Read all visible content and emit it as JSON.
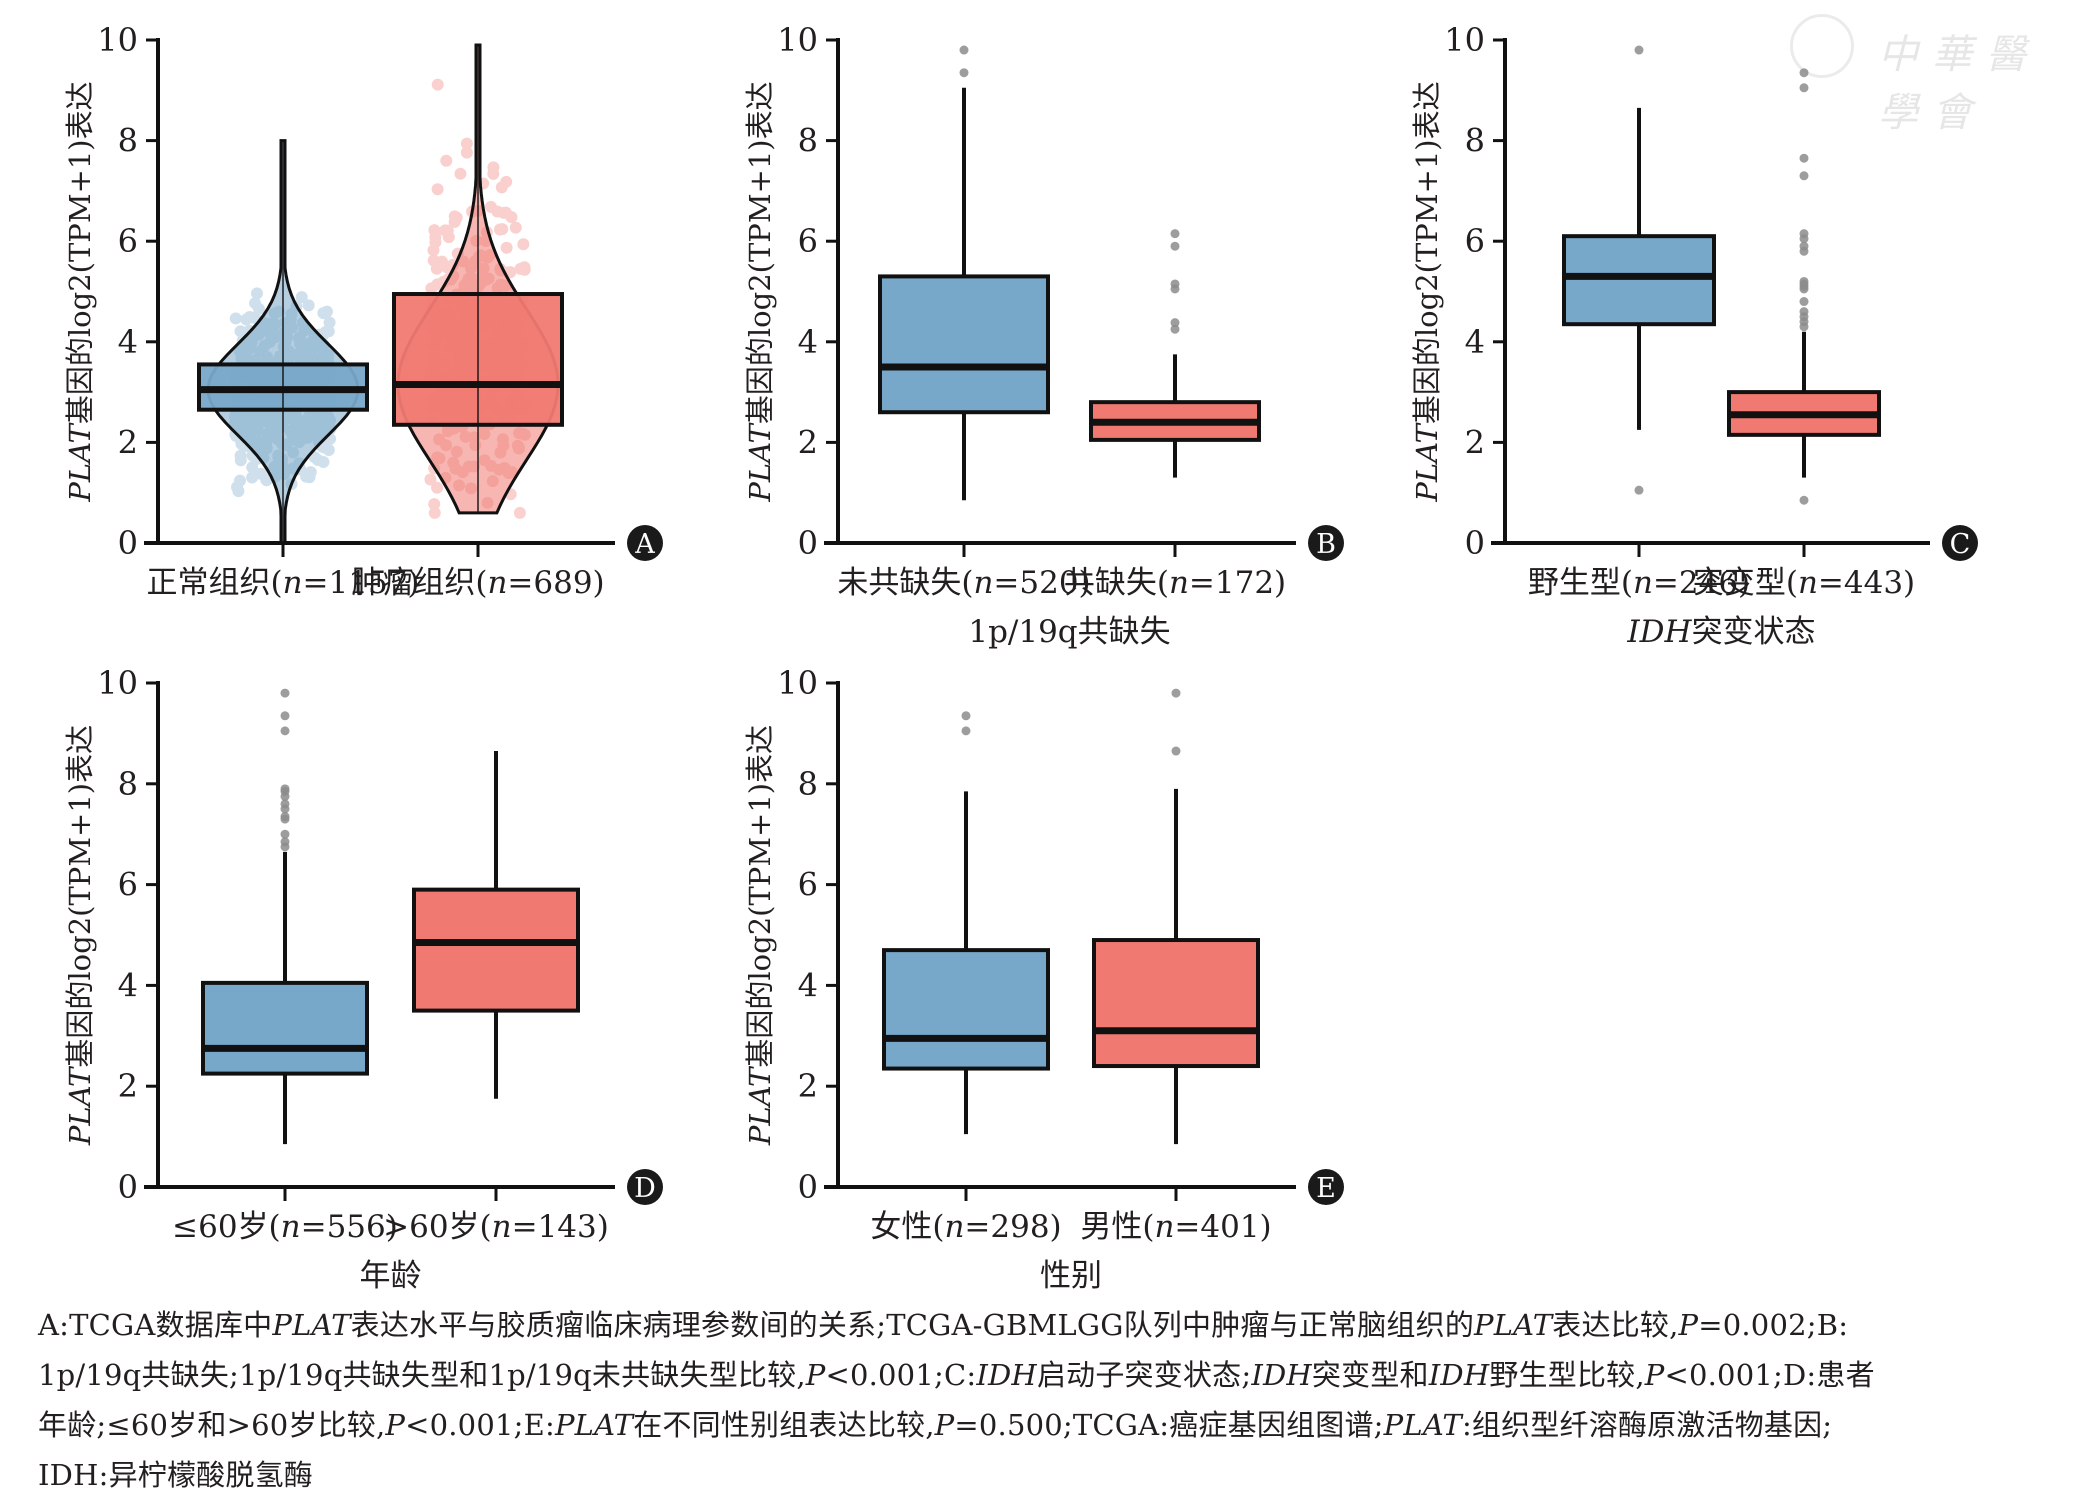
{
  "colors": {
    "blue": "#78A8C9",
    "red": "#F07A72",
    "outlier": "#8c8c8c",
    "axis": "#111111"
  },
  "watermark": {
    "text": "中華醫學會"
  },
  "chart_data": [
    {
      "panel": "A",
      "type": "box-violin-jitter",
      "ylabel": "PLAT基因的log2(TPM+1)表达",
      "ylabel_italic_part": "PLAT",
      "ylim": [
        0,
        10
      ],
      "yticks": [
        0,
        2,
        4,
        6,
        8,
        10
      ],
      "categories": [
        "正常组织(n=1157)",
        "肿瘤组织(n=689)"
      ],
      "xlabel": "",
      "groups": [
        {
          "name": "正常组织",
          "n": 1157,
          "color": "blue",
          "q1": 2.65,
          "median": 3.05,
          "q3": 3.55,
          "violin_min": 0.0,
          "violin_max": 8.0
        },
        {
          "name": "肿瘤组织",
          "n": 689,
          "color": "red",
          "q1": 2.35,
          "median": 3.15,
          "q3": 4.95,
          "violin_min": 0.6,
          "violin_max": 9.9
        }
      ]
    },
    {
      "panel": "B",
      "type": "box",
      "ylabel": "PLAT基因的log2(TPM+1)表达",
      "ylim": [
        0,
        10
      ],
      "yticks": [
        0,
        2,
        4,
        6,
        8,
        10
      ],
      "categories": [
        "未共缺失(n=520)",
        "共缺失(n=172)"
      ],
      "xlabel": "1p/19q共缺失",
      "groups": [
        {
          "name": "未共缺失",
          "n": 520,
          "color": "blue",
          "whisker_low": 0.85,
          "q1": 2.6,
          "median": 3.5,
          "q3": 5.3,
          "whisker_high": 9.05,
          "outliers": [
            9.35,
            9.8
          ]
        },
        {
          "name": "共缺失",
          "n": 172,
          "color": "red",
          "whisker_low": 1.3,
          "q1": 2.05,
          "median": 2.4,
          "q3": 2.8,
          "whisker_high": 3.75,
          "outliers": [
            4.25,
            4.38,
            5.05,
            5.15,
            5.9,
            6.15
          ]
        }
      ]
    },
    {
      "panel": "C",
      "type": "box",
      "ylabel": "PLAT基因的log2(TPM+1)表达",
      "ylim": [
        0,
        10
      ],
      "yticks": [
        0,
        2,
        4,
        6,
        8,
        10
      ],
      "categories": [
        "野生型(n=246)",
        "突变型(n=443)"
      ],
      "xlabel": "IDH突变状态",
      "groups": [
        {
          "name": "野生型",
          "n": 246,
          "color": "blue",
          "whisker_low": 2.25,
          "q1": 4.35,
          "median": 5.3,
          "q3": 6.1,
          "whisker_high": 8.65,
          "outliers": [
            1.05,
            9.8
          ]
        },
        {
          "name": "突变型",
          "n": 443,
          "color": "red",
          "whisker_low": 1.3,
          "q1": 2.15,
          "median": 2.55,
          "q3": 3.0,
          "whisker_high": 4.2,
          "outliers": [
            0.85,
            4.3,
            4.4,
            4.5,
            4.6,
            4.8,
            5.05,
            5.1,
            5.15,
            5.2,
            5.8,
            5.9,
            6.05,
            6.15,
            7.3,
            7.65,
            9.05,
            9.35
          ]
        }
      ]
    },
    {
      "panel": "D",
      "type": "box",
      "ylabel": "PLAT基因的log2(TPM+1)表达",
      "ylim": [
        0,
        10
      ],
      "yticks": [
        0,
        2,
        4,
        6,
        8,
        10
      ],
      "categories": [
        "≤60岁(n=556)",
        ">60岁(n=143)"
      ],
      "xlabel": "年龄",
      "groups": [
        {
          "name": "≤60岁",
          "n": 556,
          "color": "blue",
          "whisker_low": 0.85,
          "q1": 2.25,
          "median": 2.75,
          "q3": 4.05,
          "whisker_high": 6.65,
          "outliers": [
            6.75,
            6.85,
            7.0,
            7.3,
            7.35,
            7.5,
            7.6,
            7.75,
            7.85,
            7.9,
            9.05,
            9.35,
            9.8
          ]
        },
        {
          "name": ">60岁",
          "n": 143,
          "color": "red",
          "whisker_low": 1.75,
          "q1": 3.5,
          "median": 4.85,
          "q3": 5.9,
          "whisker_high": 8.65,
          "outliers": []
        }
      ]
    },
    {
      "panel": "E",
      "type": "box",
      "ylabel": "PLAT基因的log2(TPM+1)表达",
      "ylim": [
        0,
        10
      ],
      "yticks": [
        0,
        2,
        4,
        6,
        8,
        10
      ],
      "categories": [
        "女性(n=298)",
        "男性(n=401)"
      ],
      "xlabel": "性别",
      "groups": [
        {
          "name": "女性",
          "n": 298,
          "color": "blue",
          "whisker_low": 1.05,
          "q1": 2.35,
          "median": 2.95,
          "q3": 4.7,
          "whisker_high": 7.85,
          "outliers": [
            9.05,
            9.35
          ]
        },
        {
          "name": "男性",
          "n": 401,
          "color": "red",
          "whisker_low": 0.85,
          "q1": 2.4,
          "median": 3.1,
          "q3": 4.9,
          "whisker_high": 7.9,
          "outliers": [
            8.65,
            9.8
          ]
        }
      ]
    }
  ],
  "caption": {
    "lines": [
      "A:TCGA数据库中PLAT表达水平与胶质瘤临床病理参数间的关系;TCGA-GBMLGG队列中肿瘤与正常脑组织的PLAT表达比较,P=0.002;B:",
      "1p/19q共缺失;1p/19q共缺失型和1p/19q未共缺失型比较,P<0.001;C:IDH启动子突变状态;IDH突变型和IDH野生型比较,P<0.001;D:患者",
      "年龄;≤60岁和>60岁比较,P<0.001;E:PLAT在不同性别组表达比较,P=0.500;TCGA:癌症基因组图谱;PLAT:组织型纤溶酶原激活物基因;",
      "IDH:异柠檬酸脱氢酶"
    ]
  }
}
